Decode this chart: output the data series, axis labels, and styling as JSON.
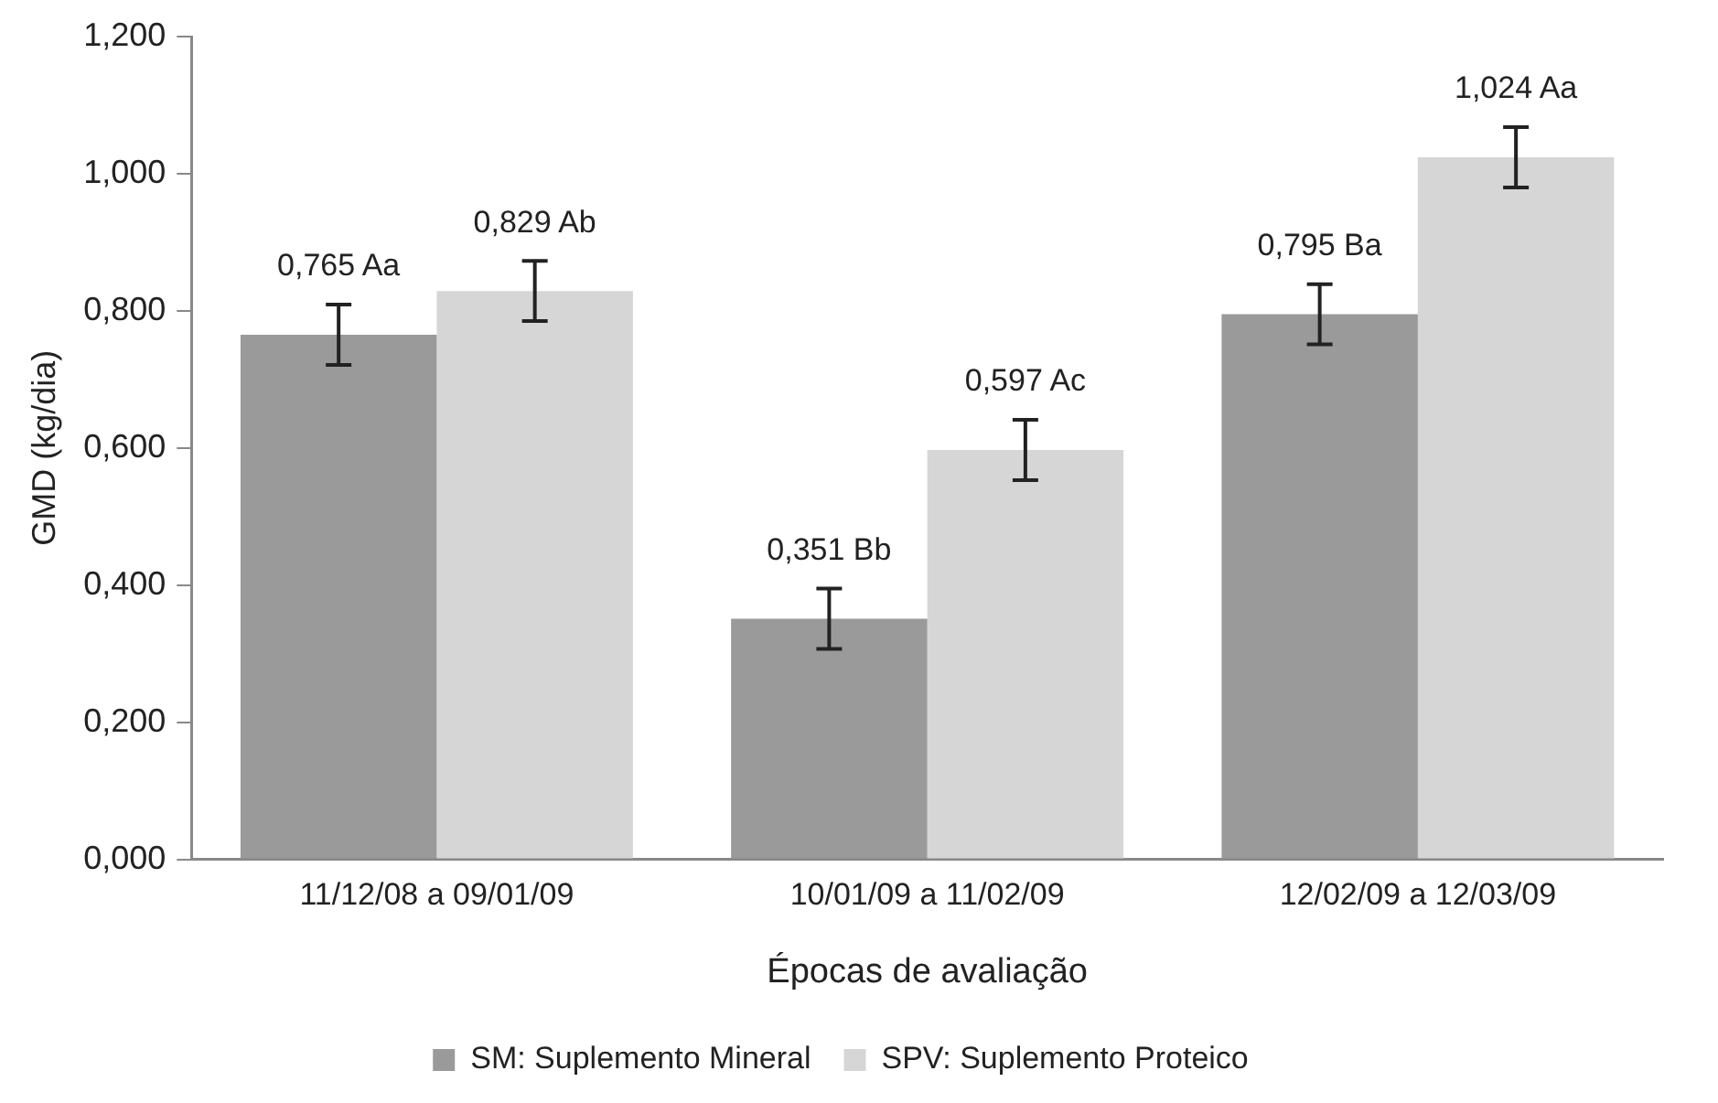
{
  "chart_data": {
    "type": "bar",
    "xlabel": "Épocas de avaliação",
    "ylabel": "GMD (kg/dia)",
    "categories": [
      "11/12/08 a 09/01/09",
      "10/01/09 a 11/02/09",
      "12/02/09 a 12/03/09"
    ],
    "series": [
      {
        "name": "SM: Suplemento Mineral",
        "color": "#9a9a9a",
        "values": [
          0.765,
          0.351,
          0.795
        ],
        "errors": [
          0.044,
          0.044,
          0.044
        ],
        "value_labels": [
          "0,765 Aa",
          "0,351 Bb",
          "0,795 Ba"
        ]
      },
      {
        "name": "SPV: Suplemento Proteico",
        "color": "#d6d6d6",
        "values": [
          0.829,
          0.597,
          1.024
        ],
        "errors": [
          0.044,
          0.044,
          0.044
        ],
        "value_labels": [
          "0,829 Ab",
          "0,597 Ac",
          "1,024 Aa"
        ]
      }
    ],
    "ylim": [
      0,
      1.2
    ],
    "yticks": [
      {
        "value": 0,
        "label": "0,000"
      },
      {
        "value": 0.2,
        "label": "0,200"
      },
      {
        "value": 0.4,
        "label": "0,400"
      },
      {
        "value": 0.6,
        "label": "0,600"
      },
      {
        "value": 0.8,
        "label": "0,800"
      },
      {
        "value": 1.0,
        "label": "1,000"
      },
      {
        "value": 1.2,
        "label": "1,200"
      }
    ],
    "grid": false,
    "legend": "bottom"
  }
}
